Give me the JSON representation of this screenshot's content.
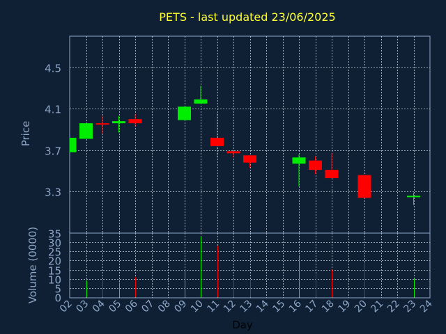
{
  "colors": {
    "background": "#0f2034",
    "frame": "#8fa8c8",
    "grid": "#c8d0dc",
    "title": "#ffff33",
    "axis_text": "#8fa8c8",
    "xlabel_text": "#000000",
    "up": "#00ee00",
    "down": "#ff0000"
  },
  "chart_data": [
    {
      "type": "candlestick",
      "title": "PETS - last updated 23/06/2025",
      "ylabel": "Price",
      "ylim": [
        2.9,
        4.8
      ],
      "yticks": [
        "3.3",
        "3.7",
        "4.1",
        "4.5"
      ],
      "xlim": [
        2,
        24
      ],
      "grid": true,
      "candles": [
        {
          "day": 2,
          "open": 3.68,
          "close": 3.82,
          "high": 3.82,
          "low": 3.68,
          "dir": "up"
        },
        {
          "day": 3,
          "open": 3.81,
          "close": 3.96,
          "high": 3.96,
          "low": 3.81,
          "dir": "up"
        },
        {
          "day": 4,
          "open": 3.96,
          "close": 3.95,
          "high": 4.03,
          "low": 3.86,
          "dir": "down"
        },
        {
          "day": 5,
          "open": 3.96,
          "close": 3.98,
          "high": 4.03,
          "low": 3.87,
          "dir": "up"
        },
        {
          "day": 6,
          "open": 4.0,
          "close": 3.96,
          "high": 4.05,
          "low": 3.93,
          "dir": "down"
        },
        {
          "day": 9,
          "open": 3.99,
          "close": 4.12,
          "high": 4.12,
          "low": 3.99,
          "dir": "up"
        },
        {
          "day": 10,
          "open": 4.15,
          "close": 4.19,
          "high": 4.32,
          "low": 4.15,
          "dir": "up"
        },
        {
          "day": 11,
          "open": 3.82,
          "close": 3.74,
          "high": 4.06,
          "low": 3.63,
          "dir": "down"
        },
        {
          "day": 12,
          "open": 3.69,
          "close": 3.67,
          "high": 3.69,
          "low": 3.63,
          "dir": "down"
        },
        {
          "day": 13,
          "open": 3.65,
          "close": 3.58,
          "high": 3.65,
          "low": 3.53,
          "dir": "down"
        },
        {
          "day": 16,
          "open": 3.57,
          "close": 3.63,
          "high": 3.66,
          "low": 3.35,
          "dir": "up"
        },
        {
          "day": 17,
          "open": 3.6,
          "close": 3.51,
          "high": 3.64,
          "low": 3.47,
          "dir": "down"
        },
        {
          "day": 18,
          "open": 3.51,
          "close": 3.43,
          "high": 3.67,
          "low": 3.43,
          "dir": "down"
        },
        {
          "day": 20,
          "open": 3.46,
          "close": 3.24,
          "high": 3.46,
          "low": 3.24,
          "dir": "down"
        },
        {
          "day": 23,
          "open": 3.25,
          "close": 3.26,
          "high": 3.29,
          "low": 3.17,
          "dir": "up"
        }
      ]
    },
    {
      "type": "bar",
      "ylabel": "Volume (0000)",
      "xlabel": "Day",
      "ylim": [
        0,
        35
      ],
      "yticks": [
        "0",
        "5",
        "10",
        "15",
        "20",
        "25",
        "30",
        "35"
      ],
      "xticks": [
        "02",
        "03",
        "04",
        "05",
        "06",
        "07",
        "08",
        "09",
        "10",
        "11",
        "12",
        "13",
        "14",
        "15",
        "16",
        "17",
        "18",
        "19",
        "20",
        "21",
        "22",
        "23",
        "24"
      ],
      "bars": [
        {
          "day": 3,
          "value": 9,
          "dir": "up"
        },
        {
          "day": 4,
          "value": 9,
          "dir": "down"
        },
        {
          "day": 5,
          "value": 8,
          "dir": "up"
        },
        {
          "day": 6,
          "value": 11,
          "dir": "down"
        },
        {
          "day": 9,
          "value": 15,
          "dir": "up"
        },
        {
          "day": 10,
          "value": 33,
          "dir": "up"
        },
        {
          "day": 11,
          "value": 28,
          "dir": "down"
        },
        {
          "day": 12,
          "value": 10,
          "dir": "down"
        },
        {
          "day": 13,
          "value": 9,
          "dir": "down"
        },
        {
          "day": 16,
          "value": 23,
          "dir": "up"
        },
        {
          "day": 17,
          "value": 13,
          "dir": "down"
        },
        {
          "day": 18,
          "value": 15,
          "dir": "down"
        },
        {
          "day": 20,
          "value": 19,
          "dir": "down"
        },
        {
          "day": 23,
          "value": 10,
          "dir": "up"
        }
      ]
    }
  ]
}
